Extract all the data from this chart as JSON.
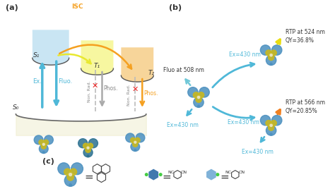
{
  "bg_color": "#ffffff",
  "panel_a_label": "(a)",
  "panel_b_label": "(b)",
  "panel_c_label": "(c)",
  "s1_label": "S₁",
  "s0_label": "S₀",
  "t1_label": "T₁",
  "t2_label": "T₂",
  "isc_label": "ISC",
  "ex_label": "Ex.",
  "fluo_label": "Fluo.",
  "nonrad1_label": "Non. Rad.",
  "phos1_label": "Phos.",
  "nonrad2_label": "Non. Rad.",
  "phos2_label": "Phos.",
  "rtp1_label": "RTP at 524 nm",
  "qy1_label": "QY=36.8%",
  "ex1_label": "Ex=430 nm",
  "rtp2_label": "RTP at 566 nm",
  "qy2_label": "QY=20.85%",
  "ex2_label": "Ex=430 nm",
  "ex3_label": "Ex=430 nm",
  "fluo_b_label": "Fluo at 508 nm",
  "bowl_s1_color": "#b8ddf0",
  "bowl_t1_color": "#f5f580",
  "bowl_t2_color": "#f5c878",
  "arrow_blue_color": "#4fb8d8",
  "arrow_isc_color": "#f5a020",
  "arrow_yellow_color": "#e8e830",
  "arrow_orange_color": "#f5a020",
  "arrow_gray_color": "#aaaaaa",
  "cross_color": "#ee2222",
  "mol_blue1": "#4a8fbf",
  "mol_blue2": "#2d6e9e",
  "mol_yellow": "#c8b820",
  "mol_teal": "#2a7090"
}
